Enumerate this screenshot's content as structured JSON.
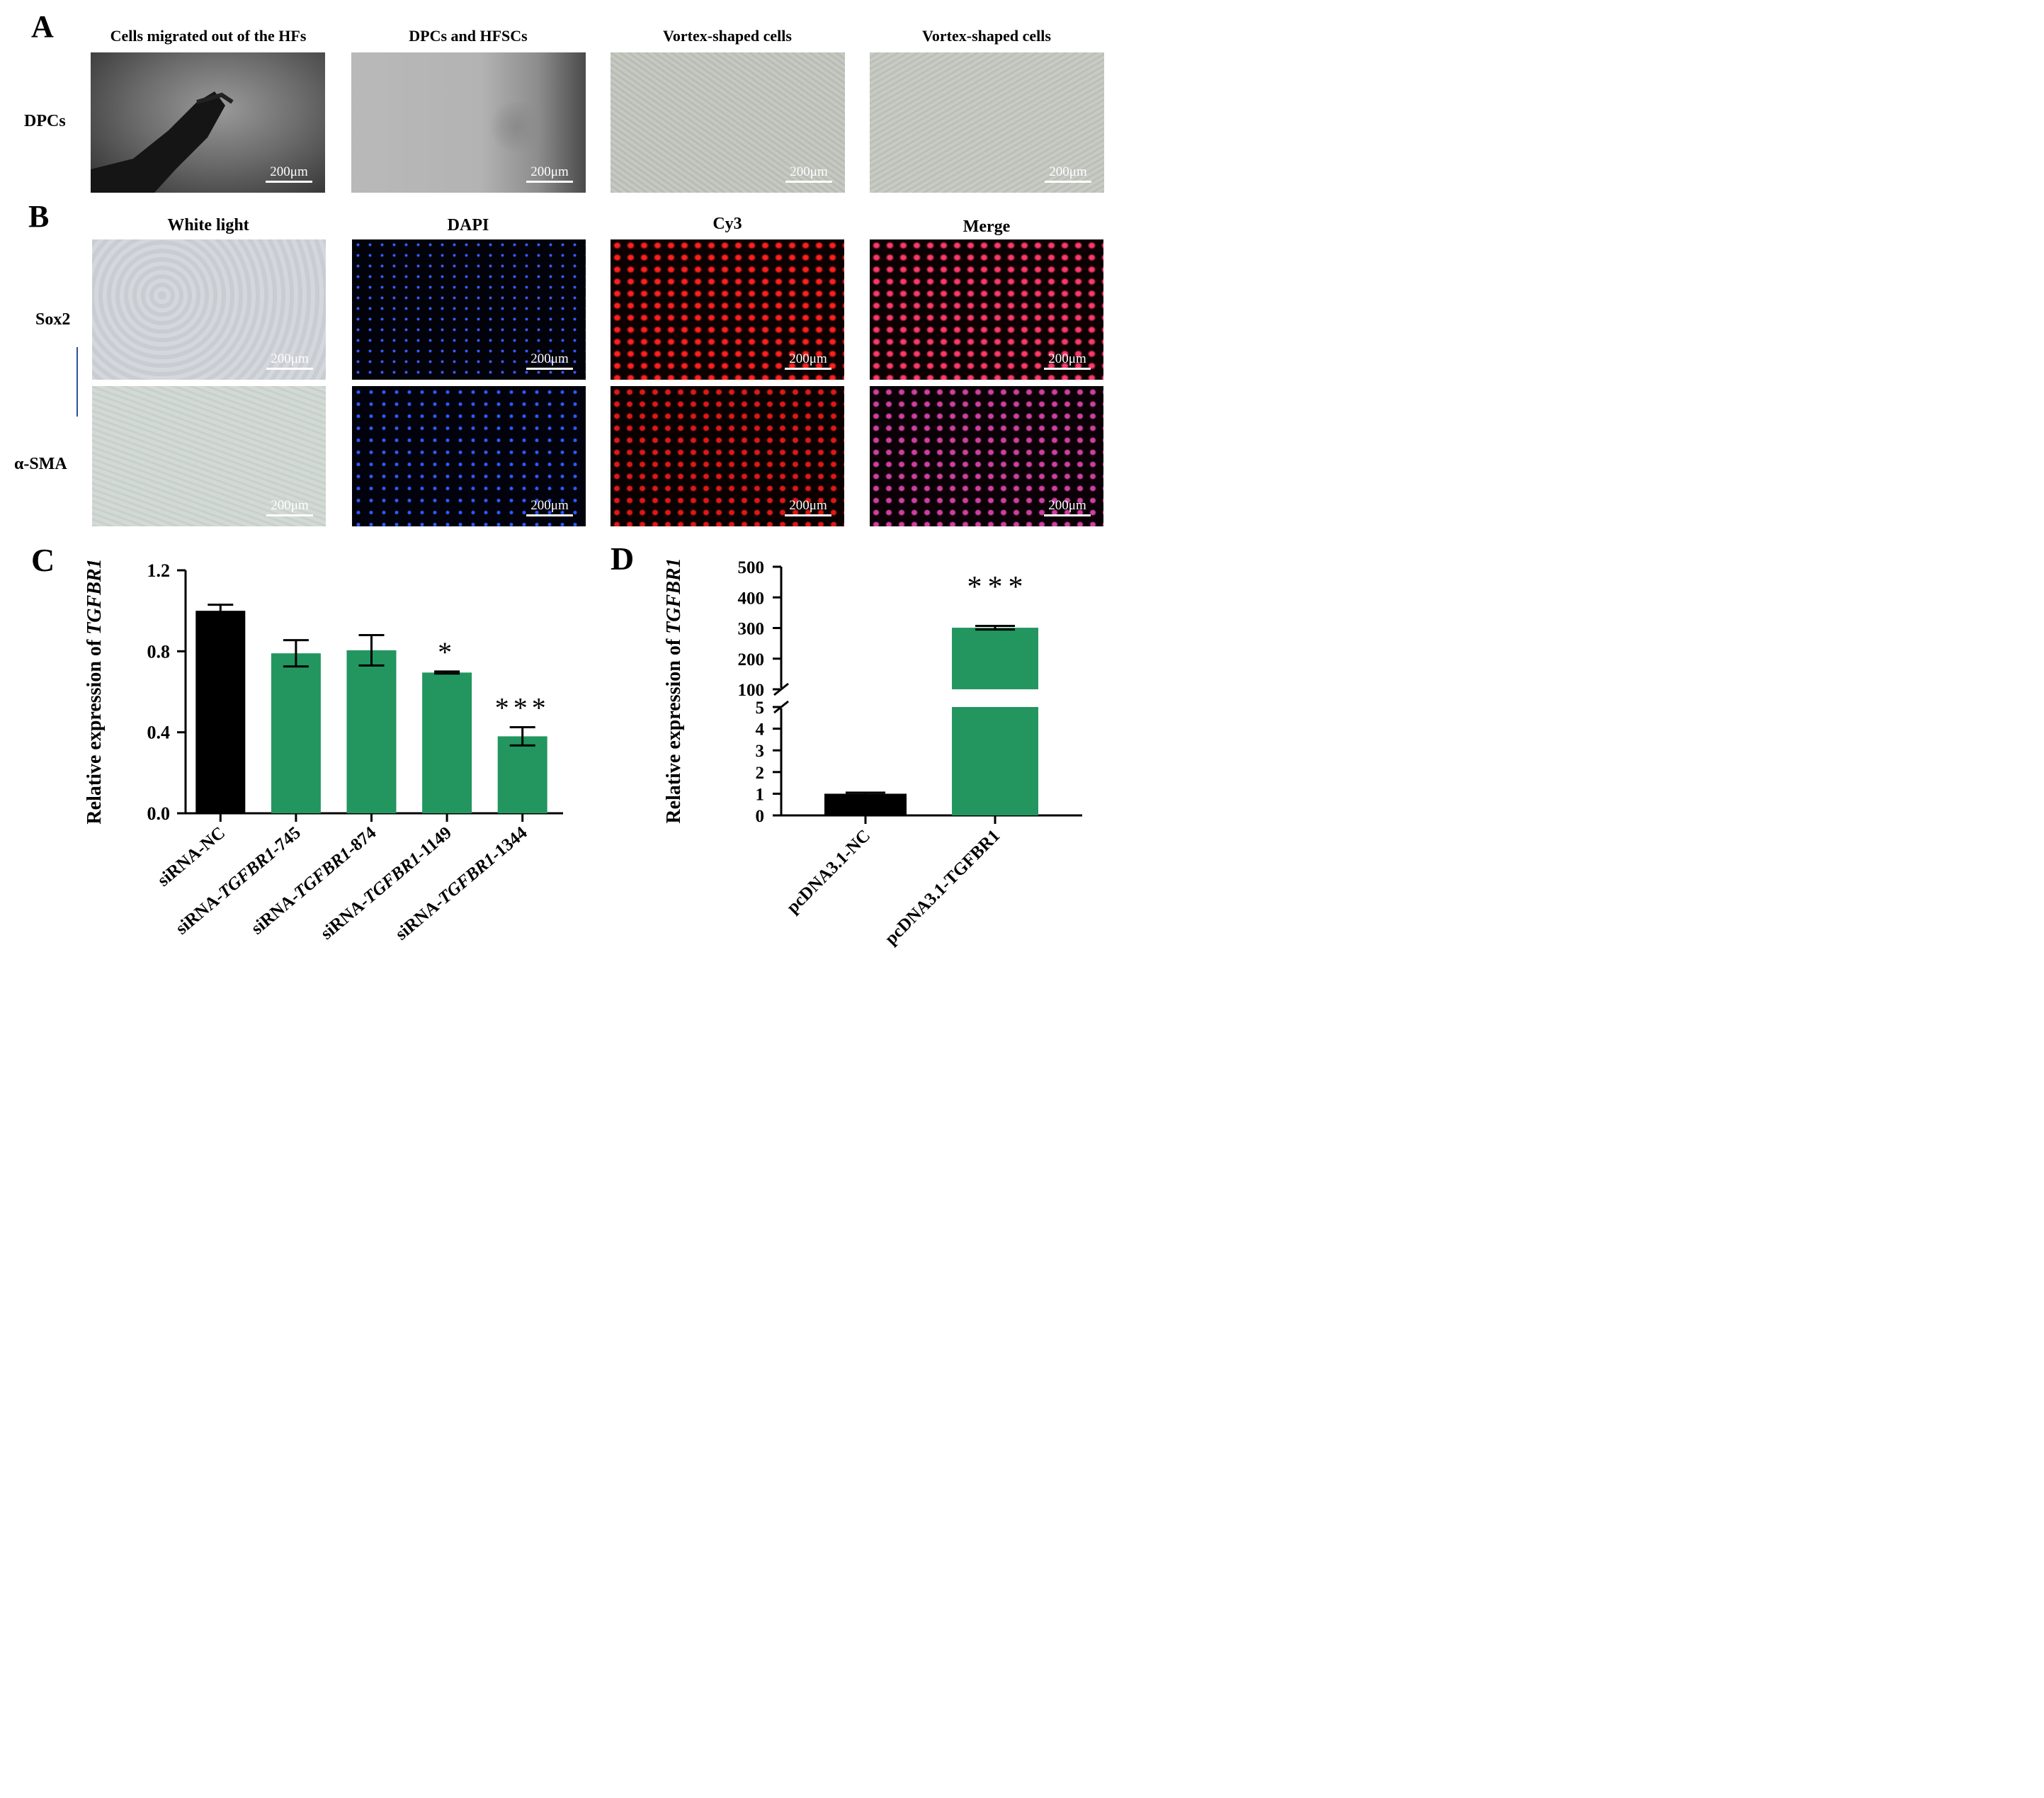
{
  "panel_a": {
    "letter": "A",
    "row_label": "DPCs",
    "columns": [
      "Cells migrated out of the HFs",
      "DPCs and HFSCs",
      "Vortex-shaped cells",
      "Vortex-shaped cells"
    ],
    "scale_bar": "200μm"
  },
  "panel_b": {
    "letter": "B",
    "columns": [
      "White light",
      "DAPI",
      "Cy3",
      "Merge"
    ],
    "rows": [
      "Sox2",
      "α-SMA"
    ],
    "scale_bar": "200μm"
  },
  "chart_data": [
    {
      "panel": "C",
      "type": "bar",
      "ylabel_prefix": "Relative expression of ",
      "ylabel_gene": "TGFBR1",
      "categories": [
        "siRNA-NC",
        "siRNA-TGFBR1-745",
        "siRNA-TGFBR1-874",
        "siRNA-TGFBR1-1149",
        "siRNA-TGFBR1-1344"
      ],
      "category_prefix": [
        "siRNA-NC",
        "siRNA-",
        "siRNA-",
        "siRNA-",
        "siRNA-"
      ],
      "category_gene": [
        "",
        "TGFBR1",
        "TGFBR1",
        "TGFBR1",
        "TGFBR1"
      ],
      "category_suffix": [
        "",
        "-745",
        "-874",
        "-1149",
        "-1344"
      ],
      "values": [
        1.0,
        0.79,
        0.805,
        0.695,
        0.38
      ],
      "errors": [
        0.03,
        0.065,
        0.075,
        0.005,
        0.045
      ],
      "significance": [
        "",
        "",
        "",
        "*",
        "***"
      ],
      "colors": [
        "#000000",
        "#239660",
        "#239660",
        "#239660",
        "#239660"
      ],
      "ylim": [
        0,
        1.2
      ],
      "yticks": [
        "0.0",
        "0.4",
        "0.8",
        "1.2"
      ],
      "ytick_values": [
        0,
        0.4,
        0.8,
        1.2
      ]
    },
    {
      "panel": "D",
      "type": "bar",
      "broken_axis": true,
      "ylabel_prefix": "Relative expression of ",
      "ylabel_gene": "TGFBR1",
      "categories": [
        "pcDNA3.1-NC",
        "pcDNA3.1-TGFBR1"
      ],
      "values": [
        1.0,
        301
      ],
      "errors": [
        0.05,
        6
      ],
      "significance": [
        "",
        "***"
      ],
      "colors": [
        "#000000",
        "#239660"
      ],
      "lower_ylim": [
        0,
        5
      ],
      "upper_ylim": [
        100,
        500
      ],
      "lower_yticks": [
        "0",
        "1",
        "2",
        "3",
        "4",
        "5"
      ],
      "upper_yticks": [
        "100",
        "200",
        "300",
        "400",
        "500"
      ]
    }
  ]
}
